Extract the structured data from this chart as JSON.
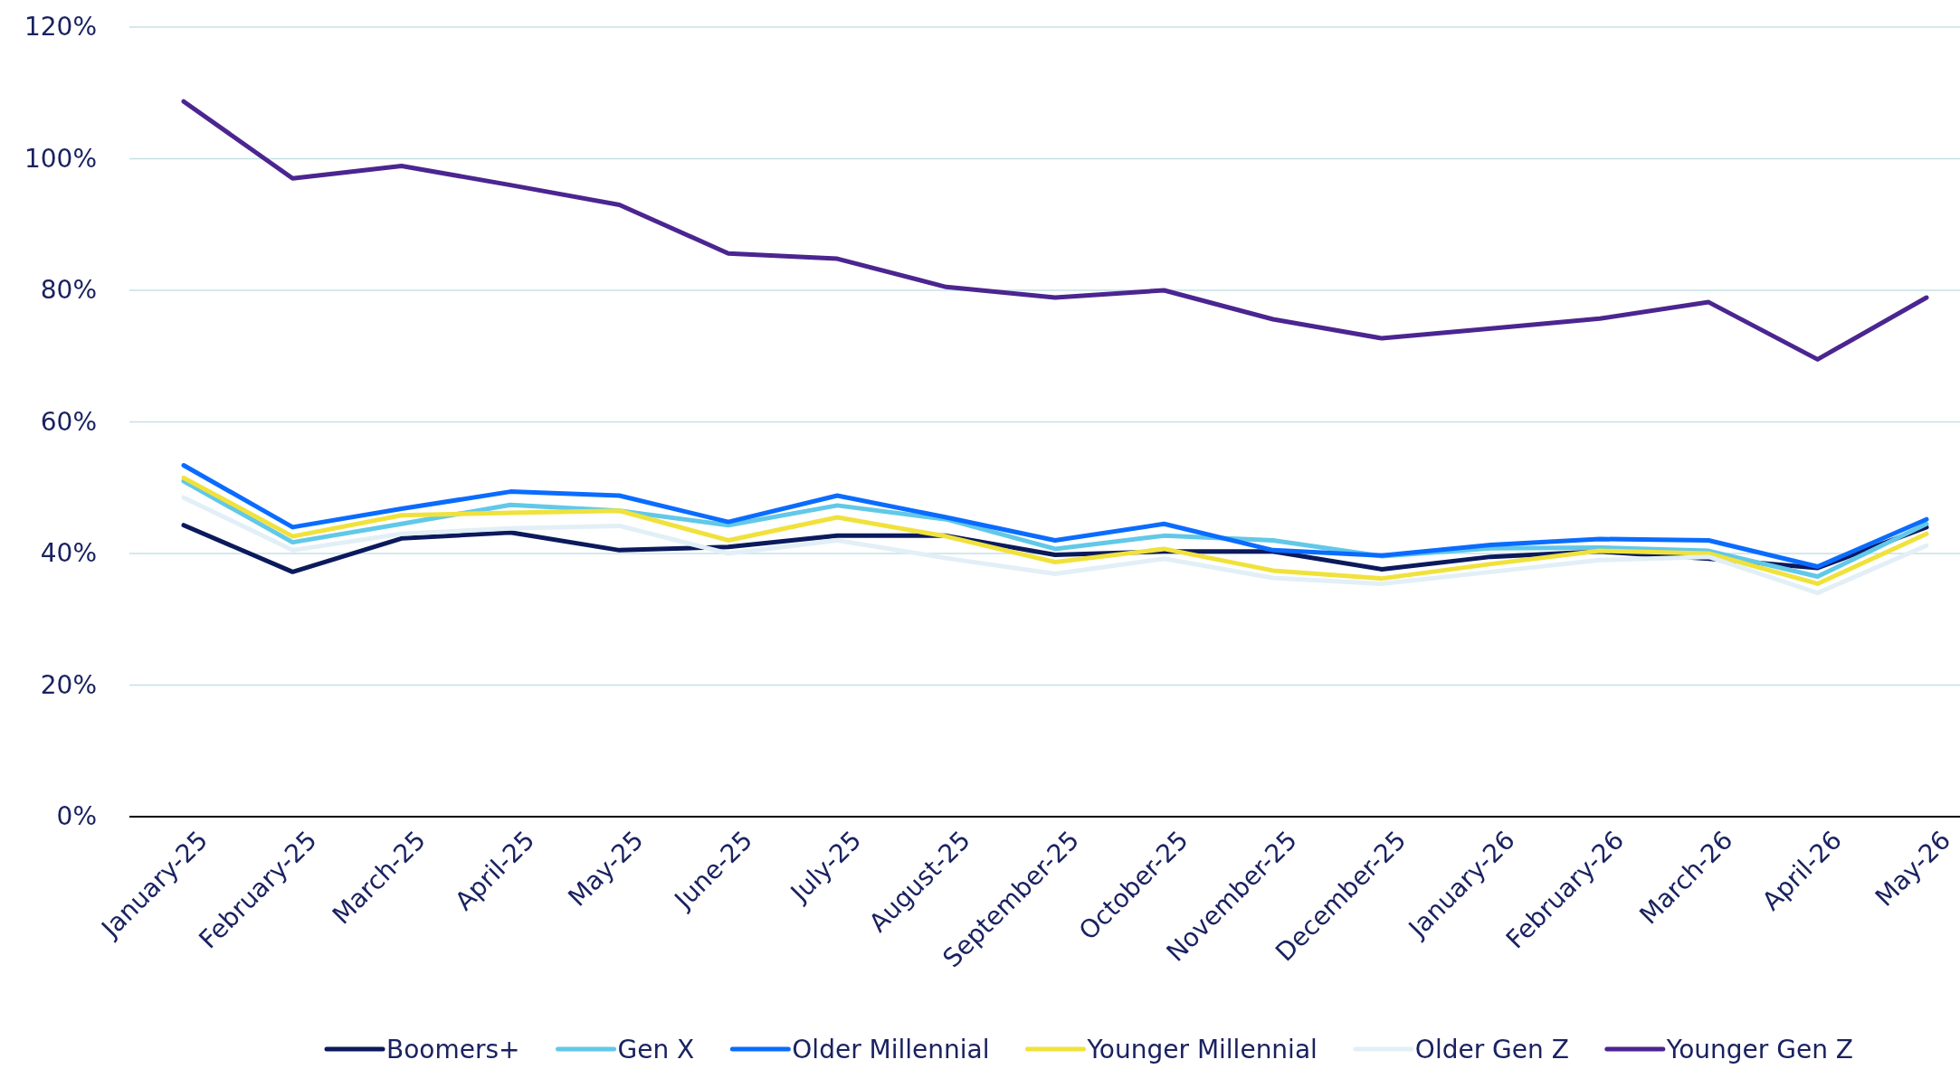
{
  "chart_data": {
    "type": "line",
    "categories": [
      "January-25",
      "February-25",
      "March-25",
      "April-25",
      "May-25",
      "June-25",
      "July-25",
      "August-25",
      "September-25",
      "October-25",
      "November-25",
      "December-25",
      "January-26",
      "February-26",
      "March-26",
      "April-26",
      "May-26"
    ],
    "ylim": [
      0,
      120
    ],
    "yticks": [
      {
        "value": 0,
        "label": "0%"
      },
      {
        "value": 20,
        "label": "20%"
      },
      {
        "value": 40,
        "label": "40%"
      },
      {
        "value": 60,
        "label": "60%"
      },
      {
        "value": 80,
        "label": "80%"
      },
      {
        "value": 100,
        "label": "100%"
      },
      {
        "value": 120,
        "label": "120%"
      }
    ],
    "grid": "y",
    "legend": "bottom",
    "marker": "none",
    "line_style": "solid",
    "series": [
      {
        "name": "Boomers+",
        "color": "#0b1a5c",
        "values": [
          44.3,
          37.2,
          42.3,
          43.2,
          40.5,
          41,
          42.7,
          42.7,
          39.8,
          40.3,
          40.3,
          37.6,
          39.5,
          40.3,
          39.2,
          37.8,
          44
        ]
      },
      {
        "name": "Gen X",
        "color": "#62c8e8",
        "values": [
          51,
          41.7,
          44.5,
          47.4,
          46.5,
          44.3,
          47.3,
          45.2,
          40.7,
          42.7,
          42,
          39.6,
          40.8,
          40.9,
          40.4,
          36.5,
          44.5
        ]
      },
      {
        "name": "Older Millennial",
        "color": "#0a6cff",
        "values": [
          53.4,
          44,
          46.8,
          49.4,
          48.8,
          44.8,
          48.8,
          45.5,
          42,
          44.5,
          40.5,
          39.7,
          41.3,
          42.2,
          42,
          38,
          45.2
        ]
      },
      {
        "name": "Younger Millennial",
        "color": "#f0e23c",
        "values": [
          51.5,
          42.6,
          45.8,
          46.2,
          46.5,
          42,
          45.5,
          42.6,
          38.7,
          40.7,
          37.4,
          36.2,
          38.4,
          40.4,
          40,
          35.4,
          43
        ]
      },
      {
        "name": "Older Gen Z",
        "color": "#e2eff7",
        "values": [
          48.5,
          40.5,
          43,
          43.8,
          44.2,
          40,
          42,
          39.3,
          36.9,
          39.2,
          36.3,
          35.4,
          37.2,
          39,
          39.5,
          34,
          41.2
        ]
      },
      {
        "name": "Younger Gen Z",
        "color": "#4b2590",
        "values": [
          108.7,
          97,
          98.9,
          96,
          93,
          85.6,
          84.8,
          80.5,
          78.9,
          80,
          75.6,
          72.7,
          74.2,
          75.7,
          78.2,
          69.5,
          78.9
        ]
      }
    ]
  }
}
